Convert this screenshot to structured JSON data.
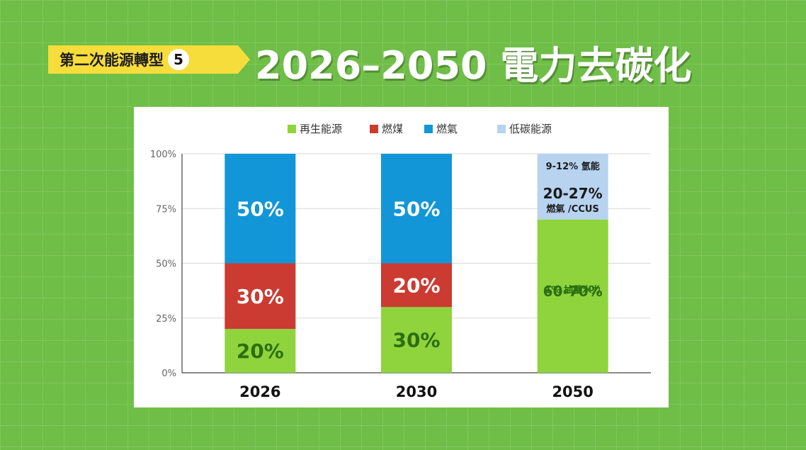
{
  "header": {
    "series_label": "第二次能源轉型",
    "series_number": "5",
    "title": "2026–2050 電力去碳化"
  },
  "chart_data": {
    "type": "bar",
    "stacked": true,
    "title": "",
    "xlabel": "",
    "ylabel": "",
    "ylim": [
      0,
      100
    ],
    "y_ticks": [
      "0%",
      "25%",
      "50%",
      "75%",
      "100%"
    ],
    "grid": true,
    "legend_position": "top",
    "categories": [
      "2026",
      "2030",
      "2050"
    ],
    "series": [
      {
        "name": "再生能源",
        "values": [
          20,
          30,
          70
        ],
        "labels": [
          "20%",
          "30%",
          "60-70%"
        ],
        "color": "#8fd43c",
        "label_color": "#2d6e12"
      },
      {
        "name": "燃煤",
        "values": [
          30,
          20,
          0
        ],
        "labels": [
          "30%",
          "20%",
          ""
        ],
        "color": "#cb3b32",
        "label_color": "#ffffff"
      },
      {
        "name": "燃氣",
        "values": [
          50,
          50,
          0
        ],
        "labels": [
          "50%",
          "50%",
          ""
        ],
        "color": "#1296d8",
        "label_color": "#ffffff"
      },
      {
        "name": "低碳能源",
        "values": [
          0,
          0,
          30
        ],
        "labels": [
          "",
          "",
          ""
        ],
        "color": "#b7d3f0",
        "label_color": "#1a1a1a"
      }
    ],
    "annotations": [
      {
        "category": "2050",
        "y": 94.5,
        "text": "9-12% 氫能",
        "size": 13
      },
      {
        "category": "2050",
        "y": 82,
        "text": "20-27%",
        "size": 20
      },
      {
        "category": "2050",
        "y": 75,
        "text": "燃氣 /CCUS",
        "size": 13
      },
      {
        "category": "2050",
        "y": 38,
        "text": "1% 抽蓄水力",
        "size": 13,
        "color": "#2d6e12"
      }
    ]
  }
}
